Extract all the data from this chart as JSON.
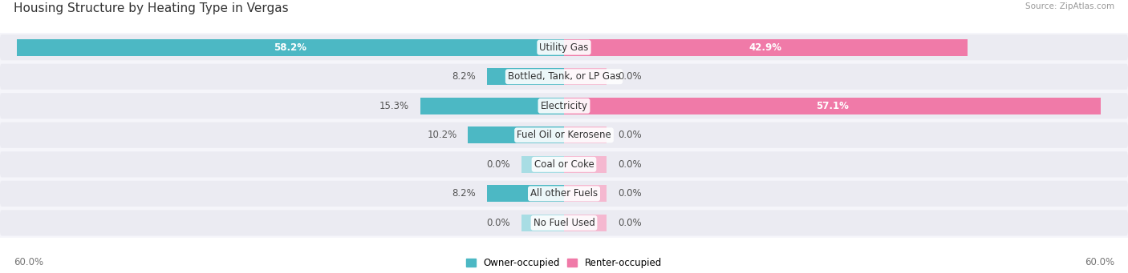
{
  "title": "Housing Structure by Heating Type in Vergas",
  "source": "Source: ZipAtlas.com",
  "categories": [
    "Utility Gas",
    "Bottled, Tank, or LP Gas",
    "Electricity",
    "Fuel Oil or Kerosene",
    "Coal or Coke",
    "All other Fuels",
    "No Fuel Used"
  ],
  "owner_values": [
    58.2,
    8.2,
    15.3,
    10.2,
    0.0,
    8.2,
    0.0
  ],
  "renter_values": [
    42.9,
    0.0,
    57.1,
    0.0,
    0.0,
    0.0,
    0.0
  ],
  "owner_color": "#4cb8c4",
  "renter_color": "#f07aa8",
  "owner_color_light": "#a8dde4",
  "renter_color_light": "#f5b8d0",
  "background_color": "#f5f5fa",
  "row_bg_color": "#ebebf2",
  "axis_max": 60.0,
  "stub_size": 4.5,
  "label_fontsize": 8.5,
  "value_fontsize": 8.5,
  "title_fontsize": 11,
  "legend_labels": [
    "Owner-occupied",
    "Renter-occupied"
  ],
  "axis_label": "60.0%",
  "bar_height": 0.58
}
